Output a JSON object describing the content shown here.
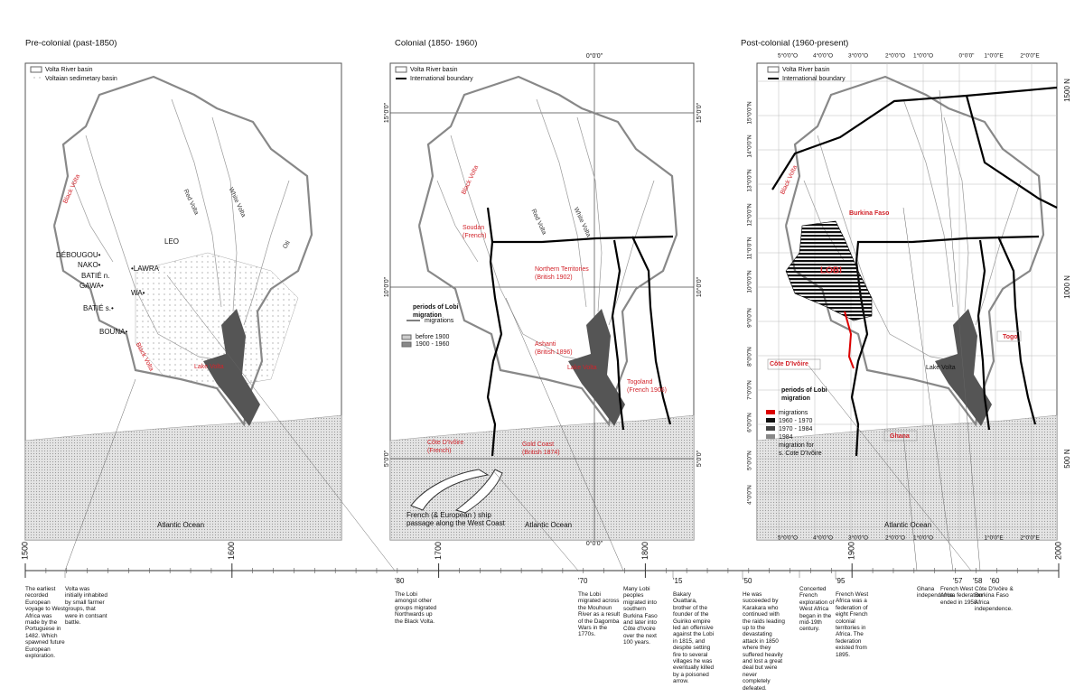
{
  "panels": [
    {
      "title": "Pre-colonial (past-1850)",
      "legend": [
        "Volta River basin",
        "Voltaian sedimetary basin"
      ],
      "labels": [
        {
          "lines": [
            "Black Volta"
          ]
        },
        {
          "lines": [
            "Red Volta"
          ]
        },
        {
          "lines": [
            "White Volta"
          ]
        },
        {
          "lines": [
            "Oti"
          ]
        },
        {
          "lines": [
            "LEO"
          ]
        },
        {
          "lines": [
            "DÉBOUGOU•"
          ]
        },
        {
          "lines": [
            "NAKO•"
          ]
        },
        {
          "lines": [
            "BATIÉ n."
          ]
        },
        {
          "lines": [
            "•LAWRA"
          ]
        },
        {
          "lines": [
            "GAWA•"
          ]
        },
        {
          "lines": [
            "WA•"
          ]
        },
        {
          "lines": [
            "BATIÉ s.•"
          ]
        },
        {
          "lines": [
            "BOUNA•"
          ]
        },
        {
          "lines": [
            "Lake Volta"
          ]
        },
        {
          "lines": [
            "Black Volta"
          ]
        },
        {
          "lines": [
            "Atlantic Ocean"
          ]
        }
      ]
    },
    {
      "title": "Colonial (1850- 1960)",
      "legend": [
        "Volta River basin",
        "International boundary"
      ],
      "labels": [
        {
          "lines": [
            "Black Volta"
          ]
        },
        {
          "lines": [
            "Red Volta"
          ]
        },
        {
          "lines": [
            "White Volta"
          ]
        },
        {
          "lines": [
            "Soudan",
            "(French)"
          ]
        },
        {
          "lines": [
            "Northern Territories",
            "(British 1902)"
          ]
        },
        {
          "lines": [
            "periods of Lobi",
            "migration"
          ]
        },
        {
          "lines": [
            "migrations"
          ]
        },
        {
          "lines": [
            "before 1900"
          ]
        },
        {
          "lines": [
            "1900 - 1960"
          ]
        },
        {
          "lines": [
            "Ashanti",
            "(British 1896)"
          ]
        },
        {
          "lines": [
            "Lake Volta"
          ]
        },
        {
          "lines": [
            "Togoland",
            "(French 1906)"
          ]
        },
        {
          "lines": [
            "Côte D'Ivôire",
            "(French)"
          ]
        },
        {
          "lines": [
            "Gold Coast",
            "(British 1874)"
          ]
        },
        {
          "lines": [
            "French (& European ) ship",
            "passage along the West Coast"
          ]
        },
        {
          "lines": [
            "Atlantic Ocean"
          ]
        },
        {
          "lines": [
            "0°0'0\""
          ]
        },
        {
          "lines": [
            "0°0'0\""
          ]
        },
        {
          "lines": [
            "15°0'0\""
          ]
        },
        {
          "lines": [
            "15°0'0\""
          ]
        },
        {
          "lines": [
            "10°0'0\""
          ]
        },
        {
          "lines": [
            "10°0'0\""
          ]
        },
        {
          "lines": [
            "5°0'0\""
          ]
        },
        {
          "lines": [
            "5°0'0\""
          ]
        }
      ]
    },
    {
      "title": "Post-colonial (1960-present)",
      "legend": [
        "Volta River basin",
        "International boundary"
      ],
      "labels": [
        {
          "lines": [
            "Black Volta"
          ]
        },
        {
          "lines": [
            "Burkina Faso"
          ]
        },
        {
          "lines": [
            "LOBI"
          ]
        },
        {
          "lines": [
            "Côte D'Ivôire"
          ]
        },
        {
          "lines": [
            "Ghana"
          ]
        },
        {
          "lines": [
            "Togo"
          ]
        },
        {
          "lines": [
            "Lake Volta"
          ]
        },
        {
          "lines": [
            "periods of Lobi",
            "migration"
          ]
        },
        {
          "lines": [
            "migrations"
          ]
        },
        {
          "lines": [
            "1960 - 1970"
          ]
        },
        {
          "lines": [
            "1970 - 1984"
          ]
        },
        {
          "lines": [
            "1984"
          ]
        },
        {
          "lines": [
            "migration for",
            "s. Cote D'Ivôire"
          ]
        },
        {
          "lines": [
            "Atlantic Ocean"
          ]
        },
        {
          "lines": [
            "5°0'0\"O"
          ]
        },
        {
          "lines": [
            "4°0'0\"O"
          ]
        },
        {
          "lines": [
            "3°0'0\"O"
          ]
        },
        {
          "lines": [
            "2°0'0\"O"
          ]
        },
        {
          "lines": [
            "1°0'0\"O"
          ]
        },
        {
          "lines": [
            "0°0'0\""
          ]
        },
        {
          "lines": [
            "1°0'0\"E"
          ]
        },
        {
          "lines": [
            "2°0'0\"E"
          ]
        },
        {
          "lines": [
            "5°0'0\"O"
          ]
        },
        {
          "lines": [
            "4°0'0\"O"
          ]
        },
        {
          "lines": [
            "3°0'0\"O"
          ]
        },
        {
          "lines": [
            "2°0'0\"O"
          ]
        },
        {
          "lines": [
            "1°0'0\"O"
          ]
        },
        {
          "lines": [
            "1°0'0\"E"
          ]
        },
        {
          "lines": [
            "2°0'0\"E"
          ]
        },
        {
          "lines": [
            "15°0'0\"N"
          ]
        },
        {
          "lines": [
            "14°0'0\"N"
          ]
        },
        {
          "lines": [
            "13°0'0\"N"
          ]
        },
        {
          "lines": [
            "12°0'0\"N"
          ]
        },
        {
          "lines": [
            "11°0'0\"N"
          ]
        },
        {
          "lines": [
            "10°0'0\"N"
          ]
        },
        {
          "lines": [
            "9°0'0\"N"
          ]
        },
        {
          "lines": [
            "8°0'0\"N"
          ]
        },
        {
          "lines": [
            "7°0'0\"N"
          ]
        },
        {
          "lines": [
            "6°0'0\"N"
          ]
        },
        {
          "lines": [
            "5°0'0\"N"
          ]
        },
        {
          "lines": [
            "4°0'0\"N"
          ]
        },
        {
          "lines": [
            "1500 N"
          ]
        },
        {
          "lines": [
            "1000 N"
          ]
        },
        {
          "lines": [
            "500 N"
          ]
        }
      ]
    }
  ],
  "timeline": {
    "ticks": [
      1500,
      1600,
      1700,
      1800,
      1900,
      2000
    ],
    "events": [
      {
        "text": "The earliest recorded European voyage to West Africa was made by the Portuguese in 1482. Which spawned future European exploration."
      },
      {
        "text": "Volta was initially inhabited by small farmer groups, that were in contsant battle."
      },
      {
        "label": "'80",
        "text": "The Lobi amongst other groups migrated Northwards up the Black Volta."
      },
      {
        "label": "'70",
        "text": "The Lobi migrated across the Mouhoun River as a result of the Dagomba Wars in the 1770s."
      },
      {
        "text": "Many Lobi peoples migrated into southern Burkina Faso and later into Côte d'Ivoire over the next 100 years."
      },
      {
        "label": "'15",
        "text": "Bakary Ouattara, brother of the founder of the Guiriko empire led an offensive against the Lobi in 1815, and despite setting fire to several villages he was eventually killed by a poisoned arrow."
      },
      {
        "label": "'50",
        "text": "He was succeeded by Karakara who continued with the raids leading up to the devastating attack in 1850 where they suffered heavily and lost a great deal but were never completely defeated."
      },
      {
        "text": "Concerted French exploration of West Africa began in the mid-19th century."
      },
      {
        "label": "'95",
        "text": "French West Africa was a federation of eight French colonial territories in Africa. The federation existed from 1895."
      },
      {
        "text": "Ghana independence."
      },
      {
        "label": "'57",
        "text": "French West Africa federation ended in 1958."
      },
      {
        "label": "'58",
        "text": "Côte D'Ivôire & Burkina Faso Africa independence."
      },
      {
        "label": "'60"
      }
    ]
  }
}
